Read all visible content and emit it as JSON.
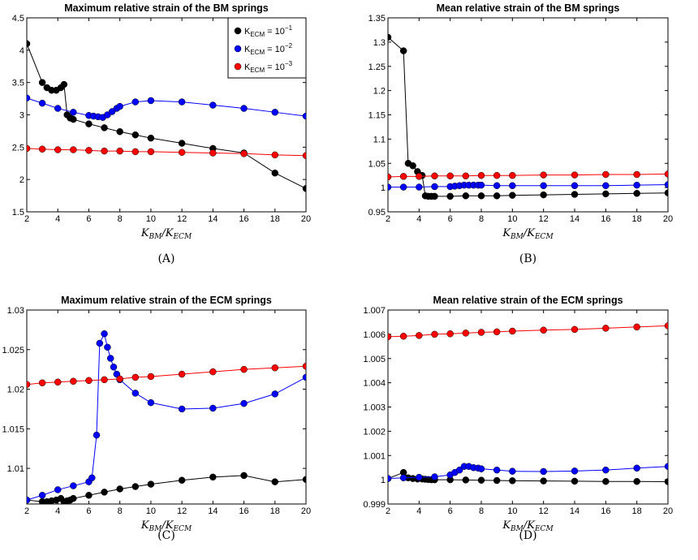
{
  "chart_data": [
    {
      "type": "line",
      "caption": "(A)",
      "title": "Maximum relative strain of the BM springs",
      "xlabel": "K_{BM}/K_{ECM}",
      "xlim": [
        2,
        20
      ],
      "ylim": [
        1.5,
        4.5
      ],
      "xticks": [
        2,
        4,
        6,
        8,
        10,
        12,
        14,
        16,
        18,
        20
      ],
      "yticks": [
        "1.5",
        "2",
        "2.5",
        "3",
        "3.5",
        "4",
        "4.5"
      ],
      "yticks_values": [
        1.5,
        2,
        2.5,
        3,
        3.5,
        4,
        4.5
      ],
      "legend": {
        "position": "top-right",
        "entries": [
          {
            "label": "K",
            "sub": "ECM",
            "rest": " = 10",
            "sup": "−1",
            "color": "#000000"
          },
          {
            "label": "K",
            "sub": "ECM",
            "rest": " = 10",
            "sup": "−2",
            "color": "#0000ff"
          },
          {
            "label": "K",
            "sub": "ECM",
            "rest": " = 10",
            "sup": "−3",
            "color": "#ff0000"
          }
        ]
      },
      "series": [
        {
          "color": "#000000",
          "points": [
            [
              2,
              4.1
            ],
            [
              3,
              3.5
            ],
            [
              3.3,
              3.42
            ],
            [
              3.6,
              3.38
            ],
            [
              3.9,
              3.38
            ],
            [
              4.2,
              3.42
            ],
            [
              4.4,
              3.47
            ],
            [
              4.6,
              3.0
            ],
            [
              4.8,
              2.95
            ],
            [
              5,
              2.93
            ],
            [
              6,
              2.86
            ],
            [
              7,
              2.8
            ],
            [
              8,
              2.74
            ],
            [
              9,
              2.69
            ],
            [
              10,
              2.64
            ],
            [
              12,
              2.56
            ],
            [
              14,
              2.48
            ],
            [
              16,
              2.41
            ],
            [
              18,
              2.1
            ],
            [
              20,
              1.86
            ]
          ]
        },
        {
          "color": "#0000ff",
          "points": [
            [
              2,
              3.26
            ],
            [
              3,
              3.18
            ],
            [
              4,
              3.1
            ],
            [
              5,
              3.04
            ],
            [
              6,
              2.99
            ],
            [
              6.3,
              2.98
            ],
            [
              6.6,
              2.97
            ],
            [
              6.9,
              2.96
            ],
            [
              7.2,
              3.0
            ],
            [
              7.5,
              3.05
            ],
            [
              7.8,
              3.1
            ],
            [
              8,
              3.13
            ],
            [
              9,
              3.2
            ],
            [
              10,
              3.22
            ],
            [
              12,
              3.2
            ],
            [
              14,
              3.15
            ],
            [
              16,
              3.1
            ],
            [
              18,
              3.04
            ],
            [
              20,
              2.98
            ]
          ]
        },
        {
          "color": "#ff0000",
          "points": [
            [
              2,
              2.48
            ],
            [
              3,
              2.47
            ],
            [
              4,
              2.46
            ],
            [
              5,
              2.46
            ],
            [
              6,
              2.45
            ],
            [
              7,
              2.44
            ],
            [
              8,
              2.44
            ],
            [
              9,
              2.43
            ],
            [
              10,
              2.43
            ],
            [
              12,
              2.42
            ],
            [
              14,
              2.41
            ],
            [
              16,
              2.4
            ],
            [
              18,
              2.38
            ],
            [
              20,
              2.37
            ]
          ]
        }
      ]
    },
    {
      "type": "line",
      "caption": "(B)",
      "title": "Mean relative strain of the BM springs",
      "xlabel": "K_{BM}/K_{ECM}",
      "xlim": [
        2,
        20
      ],
      "ylim": [
        0.95,
        1.35
      ],
      "xticks": [
        2,
        4,
        6,
        8,
        10,
        12,
        14,
        16,
        18,
        20
      ],
      "yticks": [
        "0.95",
        "1",
        "1.05",
        "1.1",
        "1.15",
        "1.2",
        "1.25",
        "1.3",
        "1.35"
      ],
      "yticks_values": [
        0.95,
        1.0,
        1.05,
        1.1,
        1.15,
        1.2,
        1.25,
        1.3,
        1.35
      ],
      "series": [
        {
          "color": "#000000",
          "points": [
            [
              2,
              1.31
            ],
            [
              3,
              1.282
            ],
            [
              3.3,
              1.05
            ],
            [
              3.6,
              1.045
            ],
            [
              3.9,
              1.033
            ],
            [
              4.2,
              1.025
            ],
            [
              4.4,
              0.983
            ],
            [
              4.6,
              0.982
            ],
            [
              4.8,
              0.982
            ],
            [
              5,
              0.982
            ],
            [
              6,
              0.982
            ],
            [
              7,
              0.983
            ],
            [
              8,
              0.983
            ],
            [
              9,
              0.983
            ],
            [
              10,
              0.984
            ],
            [
              12,
              0.985
            ],
            [
              14,
              0.986
            ],
            [
              16,
              0.987
            ],
            [
              18,
              0.988
            ],
            [
              20,
              0.989
            ]
          ]
        },
        {
          "color": "#0000ff",
          "points": [
            [
              2,
              1.001
            ],
            [
              3,
              1.001
            ],
            [
              4,
              1.001
            ],
            [
              5,
              1.002
            ],
            [
              6,
              1.002
            ],
            [
              6.3,
              1.003
            ],
            [
              6.6,
              1.004
            ],
            [
              6.9,
              1.005
            ],
            [
              7.2,
              1.005
            ],
            [
              7.5,
              1.005
            ],
            [
              7.8,
              1.005
            ],
            [
              8,
              1.005
            ],
            [
              9,
              1.004
            ],
            [
              10,
              1.004
            ],
            [
              12,
              1.004
            ],
            [
              14,
              1.004
            ],
            [
              16,
              1.004
            ],
            [
              18,
              1.005
            ],
            [
              20,
              1.006
            ]
          ]
        },
        {
          "color": "#ff0000",
          "points": [
            [
              2,
              1.022
            ],
            [
              3,
              1.023
            ],
            [
              4,
              1.023
            ],
            [
              5,
              1.024
            ],
            [
              6,
              1.024
            ],
            [
              7,
              1.024
            ],
            [
              8,
              1.025
            ],
            [
              9,
              1.025
            ],
            [
              10,
              1.025
            ],
            [
              12,
              1.026
            ],
            [
              14,
              1.026
            ],
            [
              16,
              1.027
            ],
            [
              18,
              1.027
            ],
            [
              20,
              1.028
            ]
          ]
        }
      ]
    },
    {
      "type": "line",
      "caption": "(C)",
      "title": "Maximum relative strain of the ECM springs",
      "xlabel": "K_{BM}/K_{ECM}",
      "xlim": [
        2,
        20
      ],
      "ylim": [
        1.0055,
        1.03
      ],
      "xticks": [
        2,
        4,
        6,
        8,
        10,
        12,
        14,
        16,
        18,
        20
      ],
      "yticks": [
        "1.01",
        "1.015",
        "1.02",
        "1.025",
        "1.03"
      ],
      "yticks_values": [
        1.01,
        1.015,
        1.02,
        1.025,
        1.03
      ],
      "series": [
        {
          "color": "#000000",
          "points": [
            [
              2,
              1.006
            ],
            [
              3,
              1.0058
            ],
            [
              3.3,
              1.0058
            ],
            [
              3.6,
              1.0059
            ],
            [
              3.9,
              1.006
            ],
            [
              4.2,
              1.0062
            ],
            [
              4.4,
              1.0058
            ],
            [
              4.6,
              1.0059
            ],
            [
              4.8,
              1.006
            ],
            [
              5,
              1.0062
            ],
            [
              6,
              1.0066
            ],
            [
              7,
              1.007
            ],
            [
              8,
              1.0074
            ],
            [
              9,
              1.0077
            ],
            [
              10,
              1.008
            ],
            [
              12,
              1.0085
            ],
            [
              14,
              1.0089
            ],
            [
              16,
              1.0091
            ],
            [
              18,
              1.0083
            ],
            [
              20,
              1.0086
            ]
          ]
        },
        {
          "color": "#0000ff",
          "points": [
            [
              2,
              1.006
            ],
            [
              3,
              1.0066
            ],
            [
              4,
              1.0073
            ],
            [
              5,
              1.0078
            ],
            [
              6,
              1.0083
            ],
            [
              6.2,
              1.0088
            ],
            [
              6.5,
              1.0142
            ],
            [
              6.7,
              1.0258
            ],
            [
              7.0,
              1.027
            ],
            [
              7.2,
              1.0253
            ],
            [
              7.4,
              1.0239
            ],
            [
              7.6,
              1.0228
            ],
            [
              7.8,
              1.0219
            ],
            [
              8,
              1.0212
            ],
            [
              9,
              1.0195
            ],
            [
              10,
              1.0183
            ],
            [
              12,
              1.0175
            ],
            [
              14,
              1.0176
            ],
            [
              16,
              1.0182
            ],
            [
              18,
              1.0194
            ],
            [
              20,
              1.0215
            ]
          ]
        },
        {
          "color": "#ff0000",
          "points": [
            [
              2,
              1.0206
            ],
            [
              3,
              1.0208
            ],
            [
              4,
              1.0209
            ],
            [
              5,
              1.021
            ],
            [
              6,
              1.0211
            ],
            [
              7,
              1.0212
            ],
            [
              8,
              1.0213
            ],
            [
              9,
              1.0215
            ],
            [
              10,
              1.0216
            ],
            [
              12,
              1.0219
            ],
            [
              14,
              1.0222
            ],
            [
              16,
              1.0225
            ],
            [
              18,
              1.0227
            ],
            [
              20,
              1.0229
            ]
          ]
        }
      ]
    },
    {
      "type": "line",
      "caption": "(D)",
      "title": "Mean relative strain of the ECM springs",
      "xlabel": "K_{BM}/K_{ECM}",
      "xlim": [
        2,
        20
      ],
      "ylim": [
        0.999,
        1.007
      ],
      "xticks": [
        2,
        4,
        6,
        8,
        10,
        12,
        14,
        16,
        18,
        20
      ],
      "yticks": [
        "0.999",
        "1",
        "1.001",
        "1.002",
        "1.003",
        "1.004",
        "1.005",
        "1.006",
        "1.007"
      ],
      "yticks_values": [
        0.999,
        1.0,
        1.001,
        1.002,
        1.003,
        1.004,
        1.005,
        1.006,
        1.007
      ],
      "series": [
        {
          "color": "#000000",
          "points": [
            [
              2,
              1.00005
            ],
            [
              3,
              1.0003
            ],
            [
              3.3,
              1.00008
            ],
            [
              3.6,
              1.00005
            ],
            [
              3.9,
              1.00003
            ],
            [
              4.2,
              1.00003
            ],
            [
              4.4,
              1.00002
            ],
            [
              4.6,
              1.00001
            ],
            [
              4.8,
              1.0
            ],
            [
              5,
              1.0
            ],
            [
              6,
              1.0
            ],
            [
              7,
              0.99999
            ],
            [
              8,
              0.99998
            ],
            [
              9,
              0.99997
            ],
            [
              10,
              0.99996
            ],
            [
              12,
              0.99995
            ],
            [
              14,
              0.99994
            ],
            [
              16,
              0.99993
            ],
            [
              18,
              0.99993
            ],
            [
              20,
              0.99992
            ]
          ]
        },
        {
          "color": "#0000ff",
          "points": [
            [
              2,
              1.00005
            ],
            [
              3,
              1.00008
            ],
            [
              4,
              1.0001
            ],
            [
              5,
              1.00012
            ],
            [
              6,
              1.0002
            ],
            [
              6.3,
              1.0003
            ],
            [
              6.6,
              1.0004
            ],
            [
              6.9,
              1.00055
            ],
            [
              7.2,
              1.00055
            ],
            [
              7.5,
              1.0005
            ],
            [
              7.8,
              1.00048
            ],
            [
              8,
              1.00045
            ],
            [
              9,
              1.0004
            ],
            [
              10,
              1.00035
            ],
            [
              12,
              1.00034
            ],
            [
              14,
              1.00036
            ],
            [
              16,
              1.0004
            ],
            [
              18,
              1.00048
            ],
            [
              20,
              1.00055
            ]
          ]
        },
        {
          "color": "#ff0000",
          "points": [
            [
              2,
              1.0059
            ],
            [
              3,
              1.00592
            ],
            [
              4,
              1.00595
            ],
            [
              5,
              1.006
            ],
            [
              6,
              1.00602
            ],
            [
              7,
              1.00605
            ],
            [
              8,
              1.00608
            ],
            [
              9,
              1.0061
            ],
            [
              10,
              1.00613
            ],
            [
              12,
              1.00617
            ],
            [
              14,
              1.0062
            ],
            [
              16,
              1.00625
            ],
            [
              18,
              1.0063
            ],
            [
              20,
              1.00635
            ]
          ]
        }
      ]
    }
  ]
}
